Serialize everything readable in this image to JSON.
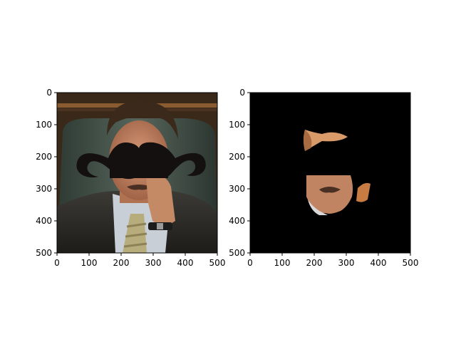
{
  "chart_data": [
    {
      "type": "image",
      "subplot": "left",
      "description_free": true,
      "xlim": [
        0,
        500
      ],
      "ylim": [
        500,
        0
      ],
      "xticks": [
        0,
        100,
        200,
        300,
        400,
        500
      ],
      "yticks": [
        0,
        100,
        200,
        300,
        400,
        500
      ],
      "xtick_labels": [
        "0",
        "100",
        "200",
        "300",
        "400",
        "500"
      ],
      "ytick_labels": [
        "0",
        "100",
        "200",
        "300",
        "400",
        "500"
      ],
      "grid": false
    },
    {
      "type": "image",
      "subplot": "right",
      "description_free": true,
      "xlim": [
        0,
        500
      ],
      "ylim": [
        500,
        0
      ],
      "xticks": [
        0,
        100,
        200,
        300,
        400,
        500
      ],
      "yticks": [
        0,
        100,
        200,
        300,
        400,
        500
      ],
      "xtick_labels": [
        "0",
        "100",
        "200",
        "300",
        "400",
        "500"
      ],
      "ytick_labels": [
        "0",
        "100",
        "200",
        "300",
        "400",
        "500"
      ],
      "grid": false
    }
  ],
  "colors": {
    "axis": "#000000",
    "mask_background": "#000000",
    "mustache": "#141010"
  }
}
